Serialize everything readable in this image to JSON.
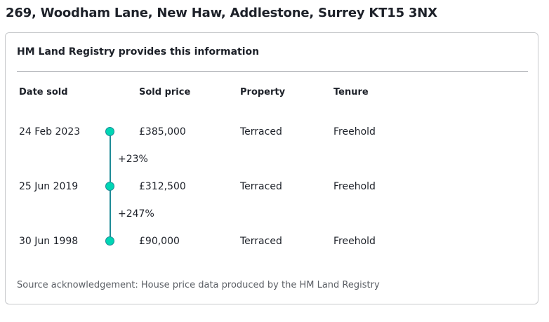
{
  "address": "269, Woodham Lane, New Haw, Addlestone, Surrey KT15 3NX",
  "card": {
    "title": "HM Land Registry provides this information",
    "headers": {
      "date": "Date sold",
      "price": "Sold price",
      "property": "Property",
      "tenure": "Tenure"
    },
    "sales": [
      {
        "date": "24 Feb 2023",
        "price": "£385,000",
        "property": "Terraced",
        "tenure": "Freehold"
      },
      {
        "date": "25 Jun 2019",
        "price": "£312,500",
        "property": "Terraced",
        "tenure": "Freehold"
      },
      {
        "date": "30 Jun 1998",
        "price": "£90,000",
        "property": "Terraced",
        "tenure": "Freehold"
      }
    ],
    "changes": [
      "+23%",
      "+247%"
    ],
    "source": "Source acknowledgement: House price data produced by the HM Land Registry"
  },
  "colors": {
    "timeline_line": "#1d8a96",
    "timeline_dot": "#00d6b4"
  }
}
